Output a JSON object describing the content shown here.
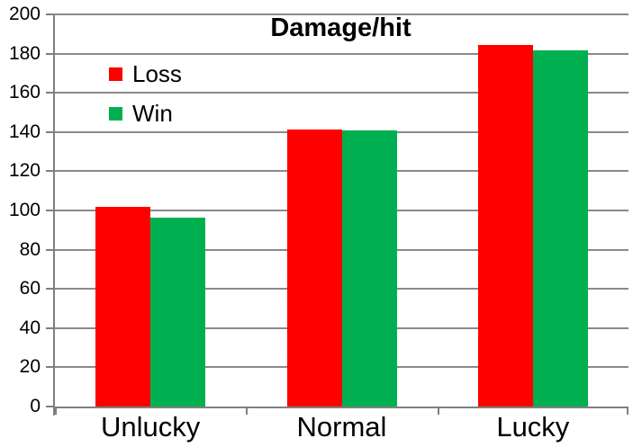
{
  "chart_data": {
    "type": "bar",
    "title": "Damage/hit",
    "categories": [
      "Unlucky",
      "Normal",
      "Lucky"
    ],
    "series": [
      {
        "name": "Loss",
        "color": "#ff0000",
        "values": [
          102,
          141.5,
          184.5
        ]
      },
      {
        "name": "Win",
        "color": "#00b050",
        "values": [
          96.5,
          141,
          181.5
        ]
      }
    ],
    "ylim": [
      0,
      200
    ],
    "ytick_step": 20,
    "ytick_labels": [
      "0",
      "20",
      "40",
      "60",
      "80",
      "100",
      "120",
      "140",
      "160",
      "180",
      "200"
    ],
    "grid": true,
    "legend_position": "inside-top-left",
    "gridline_color": "#8a8a8a",
    "axis_color": "#808080",
    "text_color": "#000000",
    "background_color": "#ffffff"
  }
}
